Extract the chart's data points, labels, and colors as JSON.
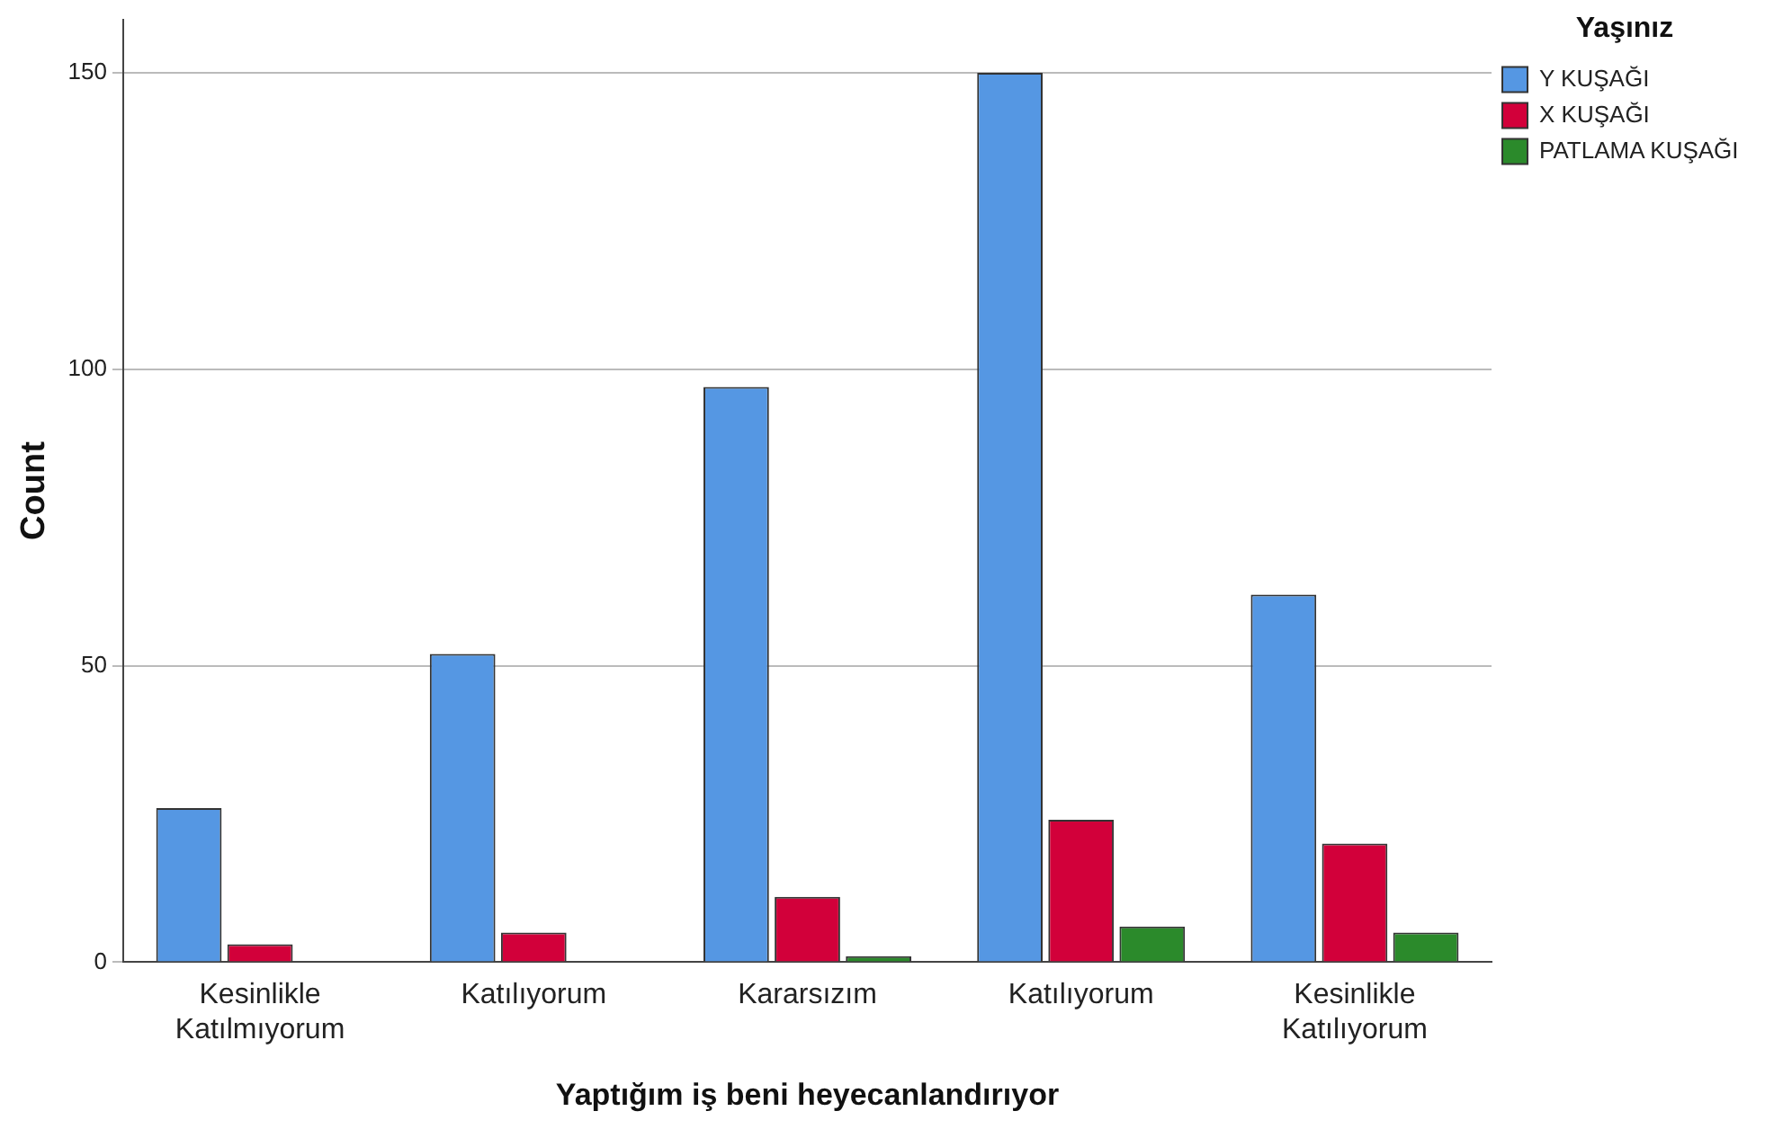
{
  "chart_data": {
    "type": "bar",
    "xlabel": "Yaptığım iş beni heyecanlandırıyor",
    "ylabel": "Count",
    "legend_title": "Yaşınız",
    "categories": [
      "Kesinlikle Katılmıyorum",
      "Katılıyorum",
      "Kararsızım",
      "Katılıyorum",
      "Kesinlikle Katılıyorum"
    ],
    "series": [
      {
        "name": "Y KUŞAĞI",
        "color": "#5597e3",
        "values": [
          26,
          52,
          97,
          150,
          62
        ]
      },
      {
        "name": "X KUŞAĞI",
        "color": "#d2003a",
        "values": [
          3,
          5,
          11,
          24,
          20
        ]
      },
      {
        "name": "PATLAMA KUŞAĞI",
        "color": "#2b8a2b",
        "values": [
          0,
          0,
          1,
          6,
          5
        ]
      }
    ],
    "ylim": [
      0,
      159
    ],
    "yticks": [
      0,
      50,
      100,
      150
    ],
    "grid": "y",
    "legend": "top right"
  }
}
